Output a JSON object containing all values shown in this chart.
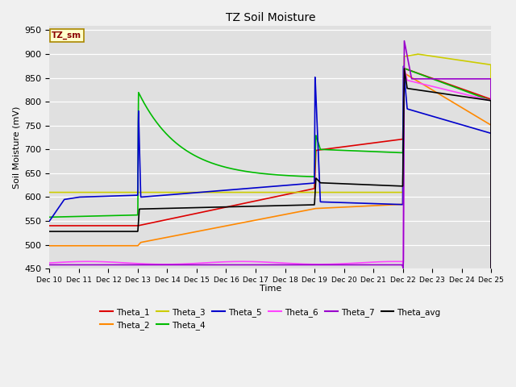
{
  "title": "TZ Soil Moisture",
  "ylabel": "Soil Moisture (mV)",
  "xlabel": "Time",
  "ylim": [
    450,
    960
  ],
  "xlim": [
    0,
    15
  ],
  "x_tick_labels": [
    "Dec 10",
    "Dec 11",
    "Dec 12",
    "Dec 13",
    "Dec 14",
    "Dec 15",
    "Dec 16",
    "Dec 17",
    "Dec 18",
    "Dec 19",
    "Dec 20",
    "Dec 21",
    "Dec 22",
    "Dec 23",
    "Dec 24",
    "Dec 25"
  ],
  "bg_color": "#e0e0e0",
  "fig_color": "#f0f0f0",
  "legend_label": "TZ_sm",
  "series_colors": {
    "Theta_1": "#dd0000",
    "Theta_2": "#ff8800",
    "Theta_3": "#cccc00",
    "Theta_4": "#00bb00",
    "Theta_5": "#0000cc",
    "Theta_6": "#ff44ff",
    "Theta_7": "#9900cc",
    "Theta_avg": "#000000"
  },
  "legend_order": [
    "Theta_1",
    "Theta_2",
    "Theta_3",
    "Theta_4",
    "Theta_5",
    "Theta_6",
    "Theta_7",
    "Theta_avg"
  ]
}
